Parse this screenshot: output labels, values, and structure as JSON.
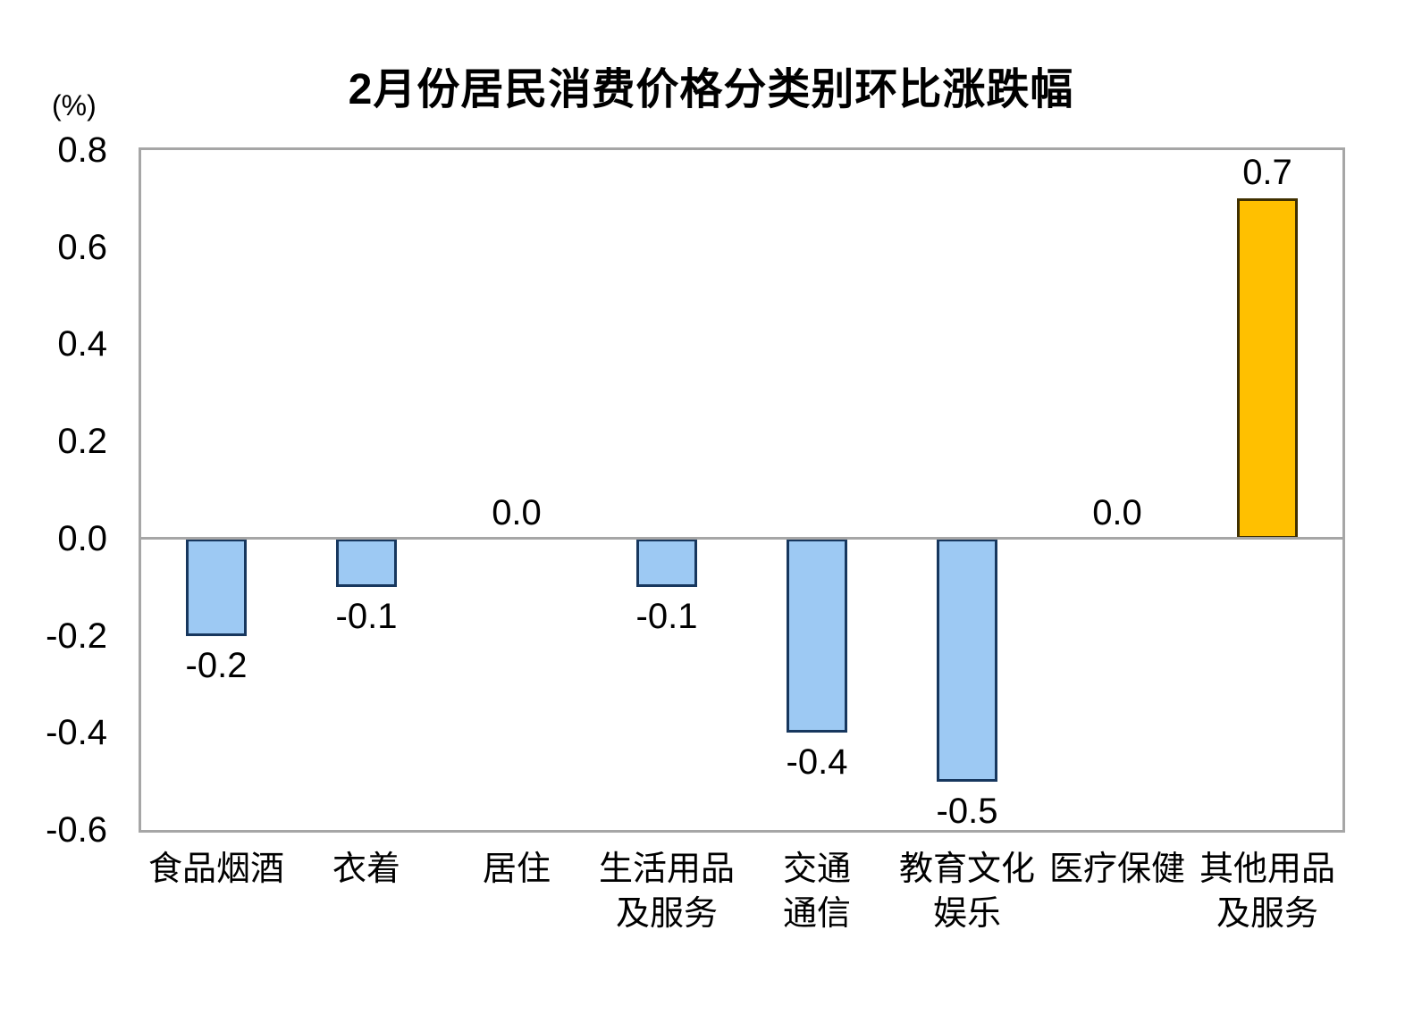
{
  "chart_data": {
    "type": "bar",
    "title": "2月份居民消费价格分类别环比涨跌幅",
    "unit_label": "(%)",
    "categories": [
      "食品烟酒",
      "衣着",
      "居住",
      "生活用品\n及服务",
      "交通\n通信",
      "教育文化\n娱乐",
      "医疗保健",
      "其他用品\n及服务"
    ],
    "values": [
      -0.2,
      -0.1,
      0.0,
      -0.1,
      -0.4,
      -0.5,
      0.0,
      0.7
    ],
    "value_labels": [
      "-0.2",
      "-0.1",
      "0.0",
      "-0.1",
      "-0.4",
      "-0.5",
      "0.0",
      "0.7"
    ],
    "ylim": [
      -0.6,
      0.8
    ],
    "y_ticks": [
      0.8,
      0.6,
      0.4,
      0.2,
      0.0,
      -0.2,
      -0.4,
      -0.6
    ],
    "y_tick_labels": [
      "0.8",
      "0.6",
      "0.4",
      "0.2",
      "0.0",
      "-0.2",
      "-0.4",
      "-0.6"
    ],
    "grid": false,
    "legend": "none",
    "colors": {
      "bar_negative_fill": "#9DC9F3",
      "bar_negative_border": "#17375E",
      "bar_positive_fill": "#FFC000",
      "bar_positive_border": "#403000",
      "axis": "#A6A6A6",
      "text": "#000000",
      "background": "#FFFFFF"
    }
  }
}
